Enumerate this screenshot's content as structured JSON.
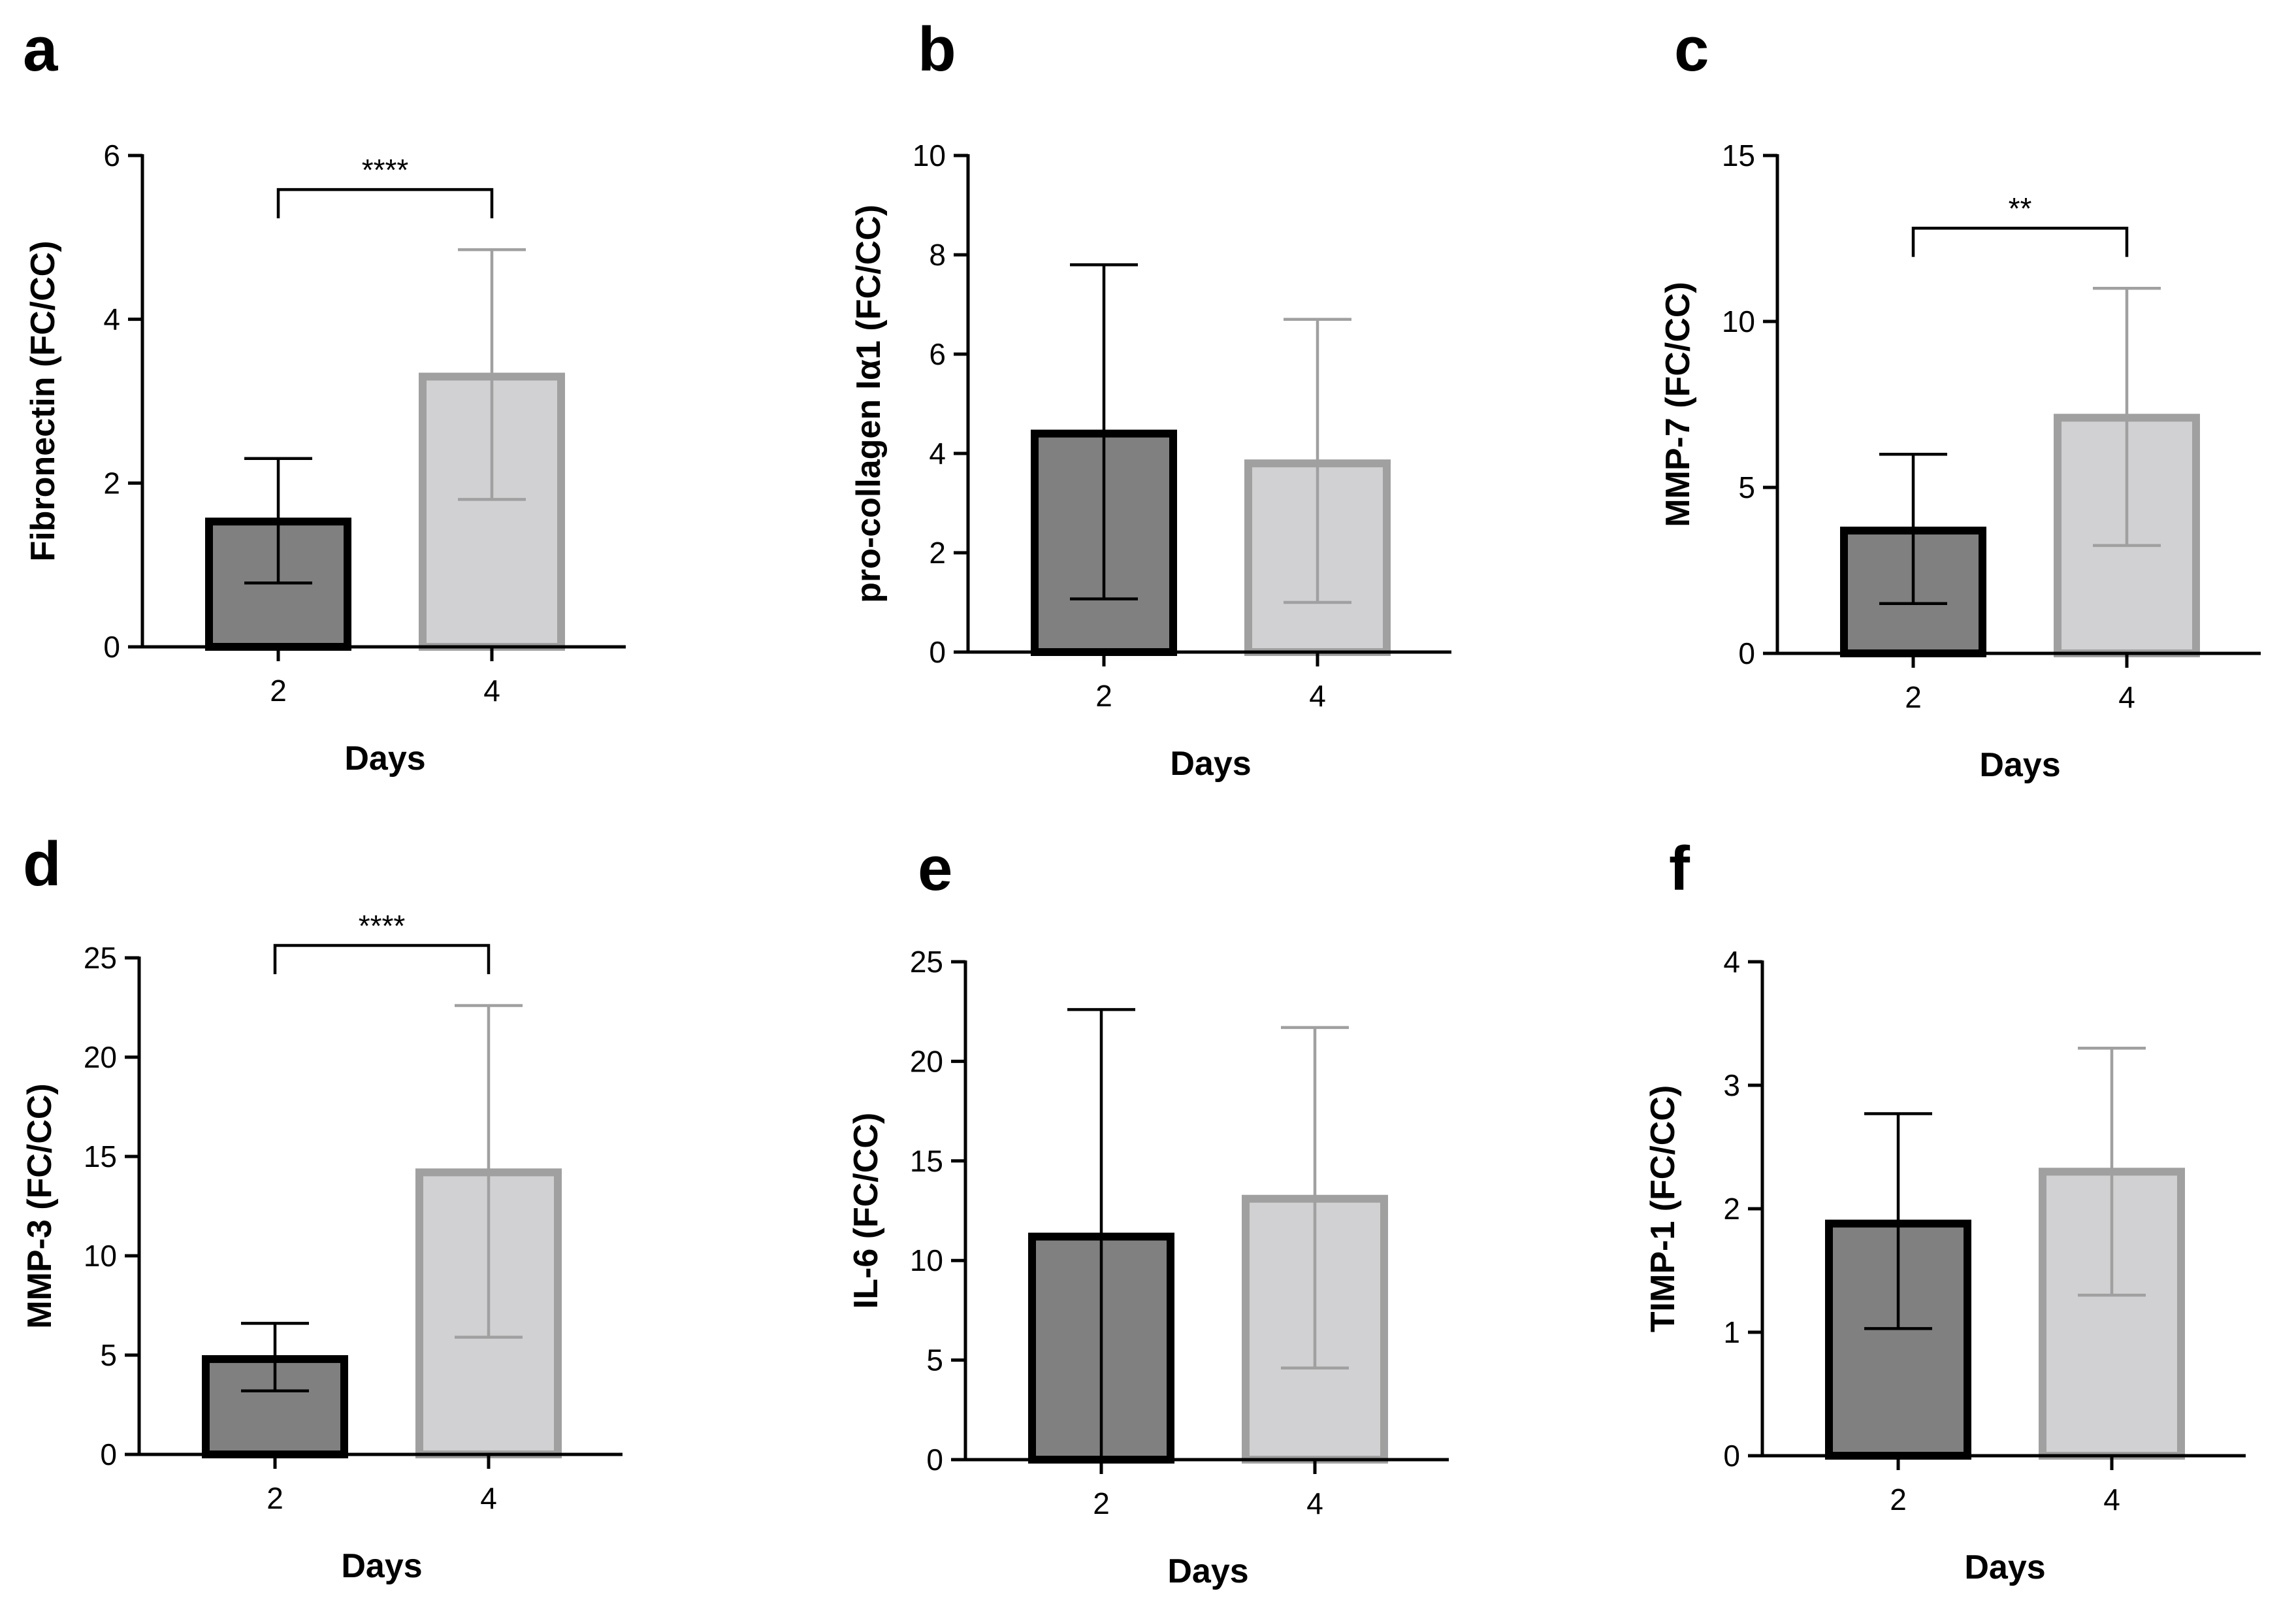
{
  "figure": {
    "background": "#ffffff"
  },
  "colors": {
    "day2_fill": "#808080",
    "day2_stroke": "#000000",
    "day4_fill": "#d1d1d3",
    "day4_stroke": "#a0a0a0"
  },
  "chart_data": [
    {
      "type": "bar",
      "panel": "a",
      "categories": [
        "2",
        "4"
      ],
      "values": [
        1.53,
        3.3
      ],
      "error_low": [
        0.78,
        1.8
      ],
      "error_high": [
        2.3,
        4.85
      ],
      "xlabel": "Days",
      "ylabel": "Fibronectin (FC/CC)",
      "ylim": [
        0,
        6
      ],
      "yticks": [
        0,
        2,
        4,
        6
      ],
      "significance": {
        "from": 0,
        "to": 1,
        "label": "****"
      },
      "grid": false,
      "legend": "none"
    },
    {
      "type": "bar",
      "panel": "b",
      "categories": [
        "2",
        "4"
      ],
      "values": [
        4.4,
        3.8
      ],
      "error_low": [
        1.07,
        1.0
      ],
      "error_high": [
        7.8,
        6.7
      ],
      "xlabel": "Days",
      "ylabel": "pro-collagen Iα1 (FC/CC)",
      "ylim": [
        0,
        10
      ],
      "yticks": [
        0,
        2,
        4,
        6,
        8,
        10
      ],
      "significance": null,
      "grid": false,
      "legend": "none"
    },
    {
      "type": "bar",
      "panel": "c",
      "categories": [
        "2",
        "4"
      ],
      "values": [
        3.7,
        7.1
      ],
      "error_low": [
        1.5,
        3.25
      ],
      "error_high": [
        6.0,
        11.0
      ],
      "xlabel": "Days",
      "ylabel": "MMP-7 (FC/CC)",
      "ylim": [
        0,
        15
      ],
      "yticks": [
        0,
        5,
        10,
        15
      ],
      "significance": {
        "from": 0,
        "to": 1,
        "label": "**"
      },
      "grid": false,
      "legend": "none"
    },
    {
      "type": "bar",
      "panel": "d",
      "categories": [
        "2",
        "4"
      ],
      "values": [
        4.8,
        14.2
      ],
      "error_low": [
        3.2,
        5.9
      ],
      "error_high": [
        6.6,
        22.6
      ],
      "xlabel": "Days",
      "ylabel": "MMP-3 (FC/CC)",
      "ylim": [
        0,
        25
      ],
      "yticks": [
        0,
        5,
        10,
        15,
        20,
        25
      ],
      "significance": {
        "from": 0,
        "to": 1,
        "label": "****"
      },
      "grid": false,
      "legend": "none"
    },
    {
      "type": "bar",
      "panel": "e",
      "categories": [
        "2",
        "4"
      ],
      "values": [
        11.2,
        13.1
      ],
      "error_low": [
        0.0,
        4.6
      ],
      "error_high": [
        22.6,
        21.7
      ],
      "xlabel": "Days",
      "ylabel": "IL-6 (FC/CC)",
      "ylim": [
        0,
        25
      ],
      "yticks": [
        0,
        5,
        10,
        15,
        20,
        25
      ],
      "significance": null,
      "grid": false,
      "legend": "none"
    },
    {
      "type": "bar",
      "panel": "f",
      "categories": [
        "2",
        "4"
      ],
      "values": [
        1.88,
        2.3
      ],
      "error_low": [
        1.03,
        1.3
      ],
      "error_high": [
        2.77,
        3.3
      ],
      "xlabel": "Days",
      "ylabel": "TIMP-1 (FC/CC)",
      "ylim": [
        0,
        4
      ],
      "yticks": [
        0,
        1,
        2,
        3,
        4
      ],
      "significance": null,
      "grid": false,
      "legend": "none"
    }
  ]
}
